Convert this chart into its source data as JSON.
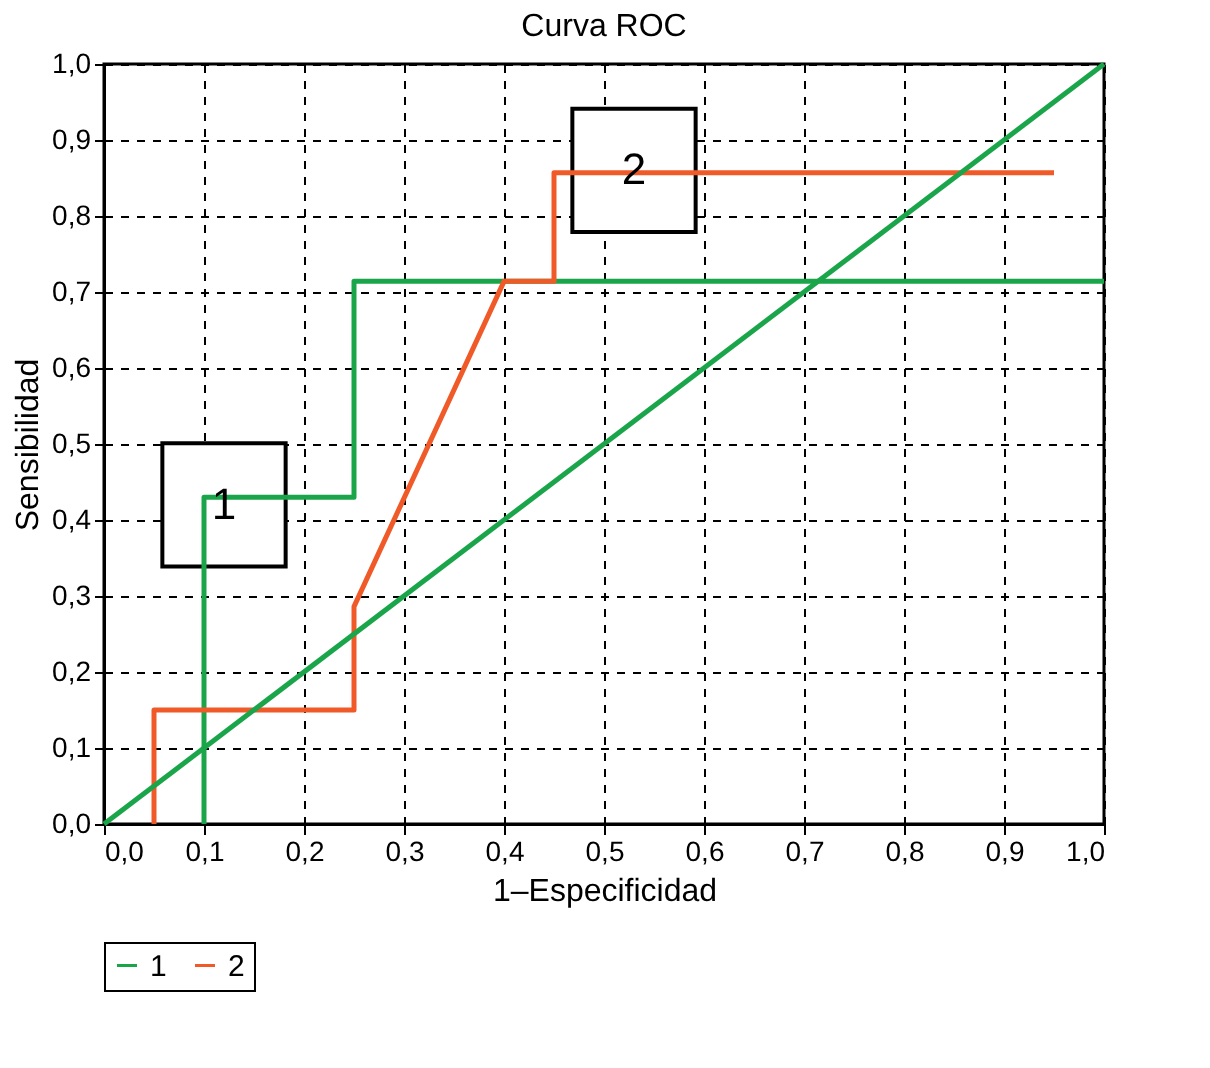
{
  "chart_data": {
    "type": "line",
    "title": "Curva ROC",
    "xlabel": "1–Especificidad",
    "ylabel": "Sensibilidad",
    "xlim": [
      0,
      1
    ],
    "ylim": [
      0,
      1
    ],
    "xticks": [
      {
        "value": 0,
        "label": "0,0"
      },
      {
        "value": 0.1,
        "label": "0,1"
      },
      {
        "value": 0.2,
        "label": "0,2"
      },
      {
        "value": 0.3,
        "label": "0,3"
      },
      {
        "value": 0.4,
        "label": "0,4"
      },
      {
        "value": 0.5,
        "label": "0,5"
      },
      {
        "value": 0.6,
        "label": "0,6"
      },
      {
        "value": 0.7,
        "label": "0,7"
      },
      {
        "value": 0.8,
        "label": "0,8"
      },
      {
        "value": 0.9,
        "label": "0,9"
      },
      {
        "value": 1,
        "label": "1,0"
      }
    ],
    "yticks": [
      {
        "value": 0,
        "label": "0,0"
      },
      {
        "value": 0.1,
        "label": "0,1"
      },
      {
        "value": 0.2,
        "label": "0,2"
      },
      {
        "value": 0.3,
        "label": "0,3"
      },
      {
        "value": 0.4,
        "label": "0,4"
      },
      {
        "value": 0.5,
        "label": "0,5"
      },
      {
        "value": 0.6,
        "label": "0,6"
      },
      {
        "value": 0.7,
        "label": "0,7"
      },
      {
        "value": 0.8,
        "label": "0,8"
      },
      {
        "value": 0.9,
        "label": "0,9"
      },
      {
        "value": 1,
        "label": "1,0"
      }
    ],
    "grid": true,
    "legend": "bottom",
    "line_style": "solid",
    "marker": "none",
    "series": [
      {
        "name": "1",
        "color": "#1aa54a",
        "x": [
          0.1,
          0.1,
          0.25,
          0.25,
          1.0
        ],
        "values": [
          0,
          0.43,
          0.43,
          0.714,
          0.714
        ]
      },
      {
        "name": "2",
        "color": "#f05a28",
        "x": [
          0.05,
          0.05,
          0.25,
          0.25,
          0.4,
          0.45,
          0.45,
          0.95
        ],
        "values": [
          0,
          0.15,
          0.15,
          0.286,
          0.714,
          0.714,
          0.857,
          0.857
        ]
      },
      {
        "color": "#1aa54a",
        "x": [
          0,
          1
        ],
        "values": [
          0,
          1
        ]
      }
    ],
    "annotations": [
      {
        "text": "1",
        "x": 0.12,
        "y": 0.42
      },
      {
        "text": "2",
        "x": 0.53,
        "y": 0.86
      }
    ]
  }
}
